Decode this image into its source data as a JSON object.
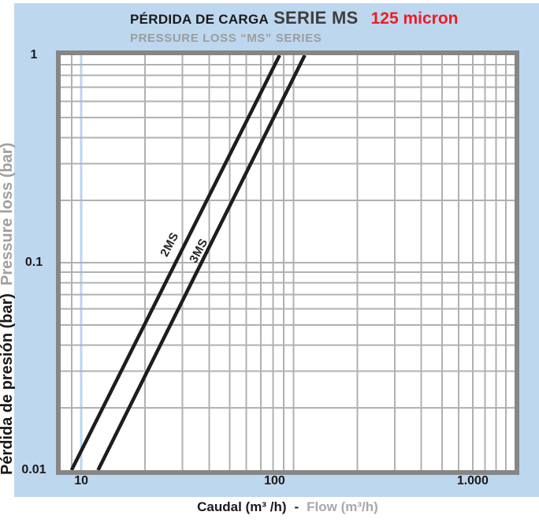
{
  "title": {
    "main": "PÉRDIDA DE CARGA",
    "series": "SERIE MS",
    "micron": "125 micron",
    "subtitle": "PRESSURE LOSS “MS” SERIES"
  },
  "y_axis": {
    "label_es": "Pérdida de presión (bar)",
    "label_en": "Pressure loss (bar)",
    "ticks": [
      "1",
      "0.1",
      "0.01"
    ]
  },
  "x_axis": {
    "label_es": "Caudal (m³ /h)",
    "separator": "-",
    "label_en": "Flow (m³/h)",
    "ticks": [
      "10",
      "100",
      "1.000"
    ]
  },
  "colors": {
    "panel": "#bdd7ee",
    "plot_bg": "#ffffff",
    "frame": "#868686",
    "grid": "#b1b1b1",
    "highlight_line": "#b9d6f0",
    "curve": "#1d1d1d",
    "accent_red": "#ed1c24",
    "gray_text": "#9c9c9c"
  },
  "chart_data": {
    "type": "line",
    "title": "PÉRDIDA DE CARGA SERIE MS - 125 micron (PRESSURE LOSS \"MS\" SERIES)",
    "xlabel": "Caudal (m³/h) - Flow (m³/h)",
    "ylabel": "Pérdida de presión (bar) - Pressure loss (bar)",
    "x_scale": "log",
    "y_scale": "log",
    "xlim": [
      8,
      1100
    ],
    "ylim": [
      0.01,
      1
    ],
    "x_decades": [
      10,
      100,
      1000
    ],
    "y_decades": [
      1,
      0.1,
      0.01
    ],
    "grid": true,
    "highlight_x": 10,
    "series": [
      {
        "name": "2MS",
        "points": [
          {
            "x": 9,
            "y": 0.01
          },
          {
            "x": 86,
            "y": 1.0
          }
        ],
        "label_at": {
          "x": 27,
          "y": 0.12
        }
      },
      {
        "name": "3MS",
        "points": [
          {
            "x": 12,
            "y": 0.01
          },
          {
            "x": 113,
            "y": 1.0
          }
        ],
        "label_at": {
          "x": 37,
          "y": 0.112
        }
      }
    ]
  }
}
